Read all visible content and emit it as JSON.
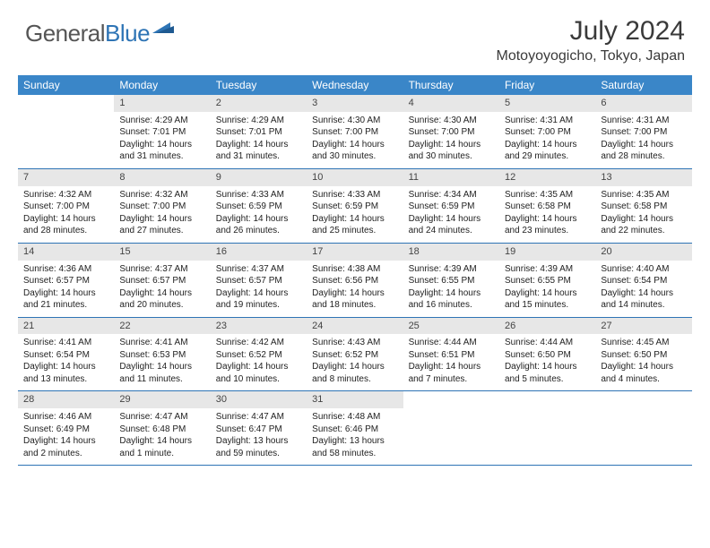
{
  "logo": {
    "part1": "General",
    "part2": "Blue"
  },
  "title": "July 2024",
  "location": "Motoyoyogicho, Tokyo, Japan",
  "colors": {
    "header_bg": "#3a86c8",
    "rule": "#2e74b5",
    "daynum_bg": "#e7e7e7",
    "text": "#222222",
    "logo_gray": "#555555",
    "logo_blue": "#2e74b5"
  },
  "weekdays": [
    "Sunday",
    "Monday",
    "Tuesday",
    "Wednesday",
    "Thursday",
    "Friday",
    "Saturday"
  ],
  "weeks": [
    [
      {
        "n": "",
        "sunrise": "",
        "sunset": "",
        "daylight": ""
      },
      {
        "n": "1",
        "sunrise": "Sunrise: 4:29 AM",
        "sunset": "Sunset: 7:01 PM",
        "daylight": "Daylight: 14 hours and 31 minutes."
      },
      {
        "n": "2",
        "sunrise": "Sunrise: 4:29 AM",
        "sunset": "Sunset: 7:01 PM",
        "daylight": "Daylight: 14 hours and 31 minutes."
      },
      {
        "n": "3",
        "sunrise": "Sunrise: 4:30 AM",
        "sunset": "Sunset: 7:00 PM",
        "daylight": "Daylight: 14 hours and 30 minutes."
      },
      {
        "n": "4",
        "sunrise": "Sunrise: 4:30 AM",
        "sunset": "Sunset: 7:00 PM",
        "daylight": "Daylight: 14 hours and 30 minutes."
      },
      {
        "n": "5",
        "sunrise": "Sunrise: 4:31 AM",
        "sunset": "Sunset: 7:00 PM",
        "daylight": "Daylight: 14 hours and 29 minutes."
      },
      {
        "n": "6",
        "sunrise": "Sunrise: 4:31 AM",
        "sunset": "Sunset: 7:00 PM",
        "daylight": "Daylight: 14 hours and 28 minutes."
      }
    ],
    [
      {
        "n": "7",
        "sunrise": "Sunrise: 4:32 AM",
        "sunset": "Sunset: 7:00 PM",
        "daylight": "Daylight: 14 hours and 28 minutes."
      },
      {
        "n": "8",
        "sunrise": "Sunrise: 4:32 AM",
        "sunset": "Sunset: 7:00 PM",
        "daylight": "Daylight: 14 hours and 27 minutes."
      },
      {
        "n": "9",
        "sunrise": "Sunrise: 4:33 AM",
        "sunset": "Sunset: 6:59 PM",
        "daylight": "Daylight: 14 hours and 26 minutes."
      },
      {
        "n": "10",
        "sunrise": "Sunrise: 4:33 AM",
        "sunset": "Sunset: 6:59 PM",
        "daylight": "Daylight: 14 hours and 25 minutes."
      },
      {
        "n": "11",
        "sunrise": "Sunrise: 4:34 AM",
        "sunset": "Sunset: 6:59 PM",
        "daylight": "Daylight: 14 hours and 24 minutes."
      },
      {
        "n": "12",
        "sunrise": "Sunrise: 4:35 AM",
        "sunset": "Sunset: 6:58 PM",
        "daylight": "Daylight: 14 hours and 23 minutes."
      },
      {
        "n": "13",
        "sunrise": "Sunrise: 4:35 AM",
        "sunset": "Sunset: 6:58 PM",
        "daylight": "Daylight: 14 hours and 22 minutes."
      }
    ],
    [
      {
        "n": "14",
        "sunrise": "Sunrise: 4:36 AM",
        "sunset": "Sunset: 6:57 PM",
        "daylight": "Daylight: 14 hours and 21 minutes."
      },
      {
        "n": "15",
        "sunrise": "Sunrise: 4:37 AM",
        "sunset": "Sunset: 6:57 PM",
        "daylight": "Daylight: 14 hours and 20 minutes."
      },
      {
        "n": "16",
        "sunrise": "Sunrise: 4:37 AM",
        "sunset": "Sunset: 6:57 PM",
        "daylight": "Daylight: 14 hours and 19 minutes."
      },
      {
        "n": "17",
        "sunrise": "Sunrise: 4:38 AM",
        "sunset": "Sunset: 6:56 PM",
        "daylight": "Daylight: 14 hours and 18 minutes."
      },
      {
        "n": "18",
        "sunrise": "Sunrise: 4:39 AM",
        "sunset": "Sunset: 6:55 PM",
        "daylight": "Daylight: 14 hours and 16 minutes."
      },
      {
        "n": "19",
        "sunrise": "Sunrise: 4:39 AM",
        "sunset": "Sunset: 6:55 PM",
        "daylight": "Daylight: 14 hours and 15 minutes."
      },
      {
        "n": "20",
        "sunrise": "Sunrise: 4:40 AM",
        "sunset": "Sunset: 6:54 PM",
        "daylight": "Daylight: 14 hours and 14 minutes."
      }
    ],
    [
      {
        "n": "21",
        "sunrise": "Sunrise: 4:41 AM",
        "sunset": "Sunset: 6:54 PM",
        "daylight": "Daylight: 14 hours and 13 minutes."
      },
      {
        "n": "22",
        "sunrise": "Sunrise: 4:41 AM",
        "sunset": "Sunset: 6:53 PM",
        "daylight": "Daylight: 14 hours and 11 minutes."
      },
      {
        "n": "23",
        "sunrise": "Sunrise: 4:42 AM",
        "sunset": "Sunset: 6:52 PM",
        "daylight": "Daylight: 14 hours and 10 minutes."
      },
      {
        "n": "24",
        "sunrise": "Sunrise: 4:43 AM",
        "sunset": "Sunset: 6:52 PM",
        "daylight": "Daylight: 14 hours and 8 minutes."
      },
      {
        "n": "25",
        "sunrise": "Sunrise: 4:44 AM",
        "sunset": "Sunset: 6:51 PM",
        "daylight": "Daylight: 14 hours and 7 minutes."
      },
      {
        "n": "26",
        "sunrise": "Sunrise: 4:44 AM",
        "sunset": "Sunset: 6:50 PM",
        "daylight": "Daylight: 14 hours and 5 minutes."
      },
      {
        "n": "27",
        "sunrise": "Sunrise: 4:45 AM",
        "sunset": "Sunset: 6:50 PM",
        "daylight": "Daylight: 14 hours and 4 minutes."
      }
    ],
    [
      {
        "n": "28",
        "sunrise": "Sunrise: 4:46 AM",
        "sunset": "Sunset: 6:49 PM",
        "daylight": "Daylight: 14 hours and 2 minutes."
      },
      {
        "n": "29",
        "sunrise": "Sunrise: 4:47 AM",
        "sunset": "Sunset: 6:48 PM",
        "daylight": "Daylight: 14 hours and 1 minute."
      },
      {
        "n": "30",
        "sunrise": "Sunrise: 4:47 AM",
        "sunset": "Sunset: 6:47 PM",
        "daylight": "Daylight: 13 hours and 59 minutes."
      },
      {
        "n": "31",
        "sunrise": "Sunrise: 4:48 AM",
        "sunset": "Sunset: 6:46 PM",
        "daylight": "Daylight: 13 hours and 58 minutes."
      },
      {
        "n": "",
        "sunrise": "",
        "sunset": "",
        "daylight": ""
      },
      {
        "n": "",
        "sunrise": "",
        "sunset": "",
        "daylight": ""
      },
      {
        "n": "",
        "sunrise": "",
        "sunset": "",
        "daylight": ""
      }
    ]
  ]
}
